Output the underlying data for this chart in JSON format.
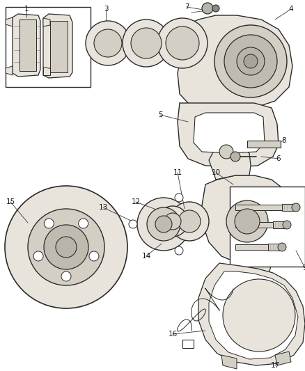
{
  "bg_color": "#ffffff",
  "fig_w": 4.38,
  "fig_h": 5.33,
  "dpi": 100,
  "lc": "#2a2a2a",
  "tc": "#1a1a1a",
  "fill_light": "#e8e4dc",
  "fill_med": "#d4cfc4",
  "fill_dark": "#c0bbb0",
  "fill_metal": "#b8b4aa"
}
